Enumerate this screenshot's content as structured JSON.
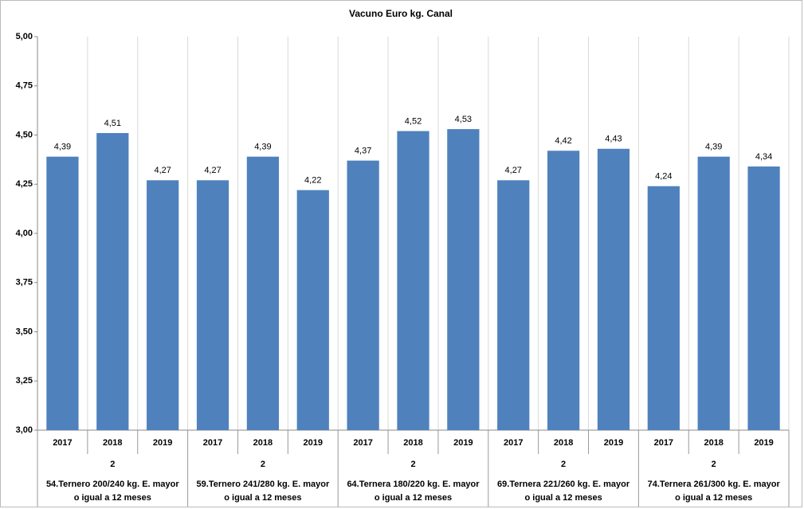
{
  "chart_data": {
    "type": "bar",
    "title": "Vacuno Euro kg. Canal",
    "categories": [
      "2017",
      "2018",
      "2019",
      "2017",
      "2018",
      "2019",
      "2017",
      "2018",
      "2019",
      "2017",
      "2018",
      "2019",
      "2017",
      "2018",
      "2019"
    ],
    "groups": [
      {
        "level": "2",
        "name": [
          "54.Ternero 200/240 kg. E. mayor",
          "o igual a 12 meses"
        ]
      },
      {
        "level": "2",
        "name": [
          "59.Ternero 241/280 kg. E. mayor",
          "o igual a 12 meses"
        ]
      },
      {
        "level": "2",
        "name": [
          "64.Ternera 180/220 kg. E.  mayor",
          "o igual a 12 meses"
        ]
      },
      {
        "level": "2",
        "name": [
          "69.Ternera 221/260 kg. E. mayor",
          "o igual a 12 meses"
        ]
      },
      {
        "level": "2",
        "name": [
          "74.Ternera 261/300 kg. E. mayor",
          "o igual a 12 meses"
        ]
      }
    ],
    "values": [
      4.39,
      4.51,
      4.27,
      4.27,
      4.39,
      4.22,
      4.37,
      4.52,
      4.53,
      4.27,
      4.42,
      4.43,
      4.24,
      4.39,
      4.34
    ],
    "value_labels": [
      "4,39",
      "4,51",
      "4,27",
      "4,27",
      "4,39",
      "4,22",
      "4,37",
      "4,52",
      "4,53",
      "4,27",
      "4,42",
      "4,43",
      "4,24",
      "4,39",
      "4,34"
    ],
    "color": "#4f81bd",
    "ylim": [
      3,
      5
    ],
    "yticks": [
      {
        "value": 3,
        "label": "3,00"
      },
      {
        "value": 3.25,
        "label": "3,25"
      },
      {
        "value": 3.5,
        "label": "3,50"
      },
      {
        "value": 3.75,
        "label": "3,75"
      },
      {
        "value": 4,
        "label": "4,00"
      },
      {
        "value": 4.25,
        "label": "4,25"
      },
      {
        "value": 4.5,
        "label": "4,50"
      },
      {
        "value": 4.75,
        "label": "4,75"
      },
      {
        "value": 5,
        "label": "5,00"
      }
    ],
    "grid": true
  }
}
